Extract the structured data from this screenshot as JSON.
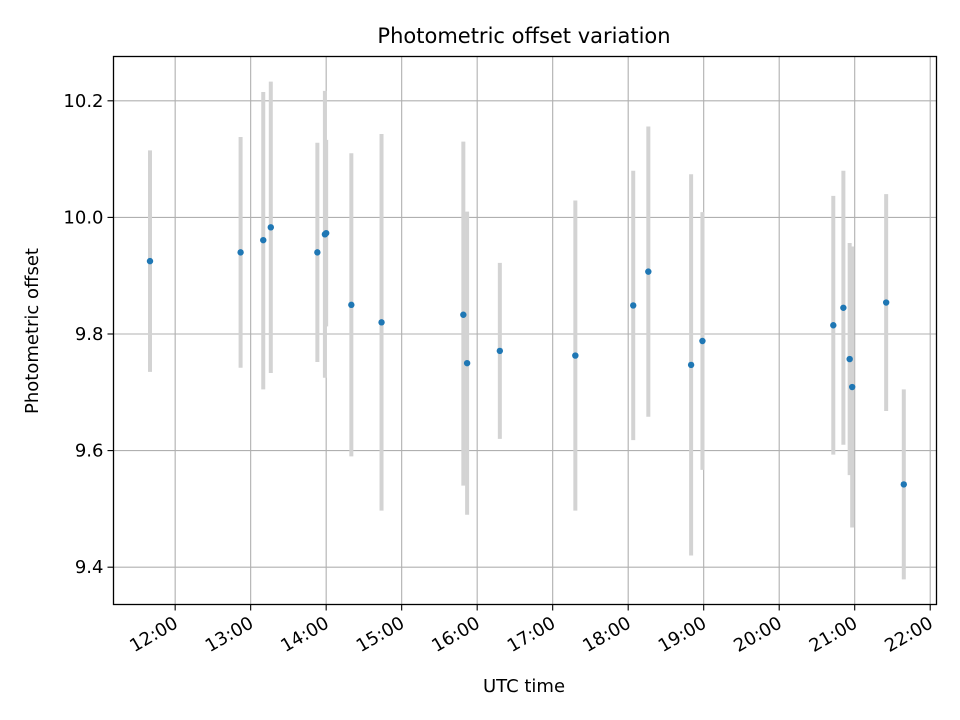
{
  "chart_data": {
    "type": "scatter",
    "title": "Photometric offset variation",
    "xlabel": "UTC time",
    "ylabel": "Photometric offset",
    "x_ticks": [
      "12:00",
      "13:00",
      "14:00",
      "15:00",
      "16:00",
      "17:00",
      "18:00",
      "19:00",
      "20:00",
      "21:00",
      "22:00"
    ],
    "y_ticks": [
      9.4,
      9.6,
      9.8,
      10.0,
      10.2
    ],
    "xlim": [
      "11:11",
      "22:05"
    ],
    "ylim": [
      9.336,
      10.276
    ],
    "grid": true,
    "point_color": "#1f77b4",
    "errorbar_color": "#d3d3d3",
    "points": [
      {
        "x": "11:40",
        "y": 9.925,
        "ylow": 9.735,
        "yhigh": 10.115
      },
      {
        "x": "12:52",
        "y": 9.94,
        "ylow": 9.742,
        "yhigh": 10.138
      },
      {
        "x": "13:10",
        "y": 9.961,
        "ylow": 9.705,
        "yhigh": 10.215
      },
      {
        "x": "13:16",
        "y": 9.983,
        "ylow": 9.733,
        "yhigh": 10.233
      },
      {
        "x": "13:53",
        "y": 9.94,
        "ylow": 9.752,
        "yhigh": 10.128
      },
      {
        "x": "13:59",
        "y": 9.971,
        "ylow": 9.725,
        "yhigh": 10.217
      },
      {
        "x": "14:00",
        "y": 9.973,
        "ylow": 9.813,
        "yhigh": 10.133
      },
      {
        "x": "14:20",
        "y": 9.85,
        "ylow": 9.59,
        "yhigh": 10.11
      },
      {
        "x": "14:44",
        "y": 9.82,
        "ylow": 9.497,
        "yhigh": 10.143
      },
      {
        "x": "15:49",
        "y": 9.833,
        "ylow": 9.54,
        "yhigh": 10.13
      },
      {
        "x": "15:52",
        "y": 9.75,
        "ylow": 9.49,
        "yhigh": 10.01
      },
      {
        "x": "16:18",
        "y": 9.771,
        "ylow": 9.62,
        "yhigh": 9.922
      },
      {
        "x": "17:18",
        "y": 9.763,
        "ylow": 9.497,
        "yhigh": 10.029
      },
      {
        "x": "18:04",
        "y": 9.849,
        "ylow": 9.618,
        "yhigh": 10.08
      },
      {
        "x": "18:16",
        "y": 9.907,
        "ylow": 9.658,
        "yhigh": 10.156
      },
      {
        "x": "18:50",
        "y": 9.747,
        "ylow": 9.42,
        "yhigh": 10.074
      },
      {
        "x": "18:59",
        "y": 9.788,
        "ylow": 9.567,
        "yhigh": 10.009
      },
      {
        "x": "20:43",
        "y": 9.815,
        "ylow": 9.593,
        "yhigh": 10.037
      },
      {
        "x": "20:51",
        "y": 9.845,
        "ylow": 9.61,
        "yhigh": 10.08
      },
      {
        "x": "20:56",
        "y": 9.757,
        "ylow": 9.558,
        "yhigh": 9.956
      },
      {
        "x": "20:58",
        "y": 9.709,
        "ylow": 9.468,
        "yhigh": 9.95
      },
      {
        "x": "21:25",
        "y": 9.854,
        "ylow": 9.668,
        "yhigh": 10.04
      },
      {
        "x": "21:39",
        "y": 9.542,
        "ylow": 9.379,
        "yhigh": 9.705
      }
    ]
  }
}
